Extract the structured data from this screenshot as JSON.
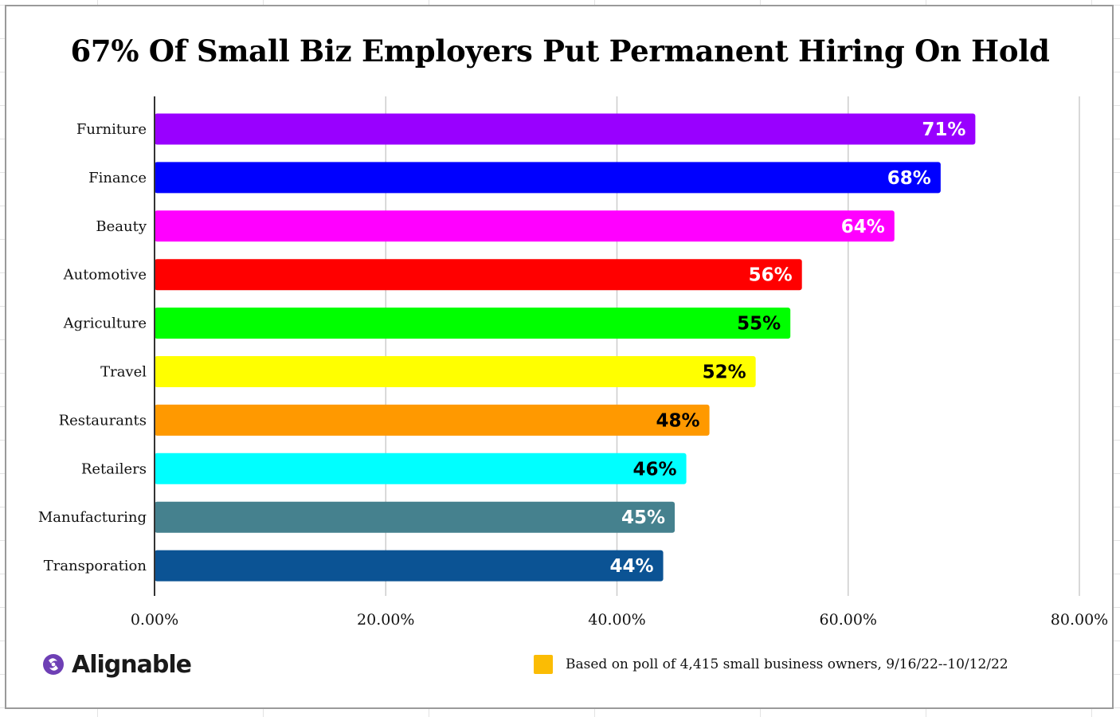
{
  "chart_data": {
    "type": "bar",
    "orientation": "horizontal",
    "title": "67% Of Small Biz Employers Put Permanent Hiring On Hold",
    "categories": [
      "Furniture",
      "Finance",
      "Beauty",
      "Automotive",
      "Agriculture",
      "Travel",
      "Restaurants",
      "Retailers",
      "Manufacturing",
      "Transporation"
    ],
    "values": [
      71,
      68,
      64,
      56,
      55,
      52,
      48,
      46,
      45,
      44
    ],
    "data_labels": [
      "71%",
      "68%",
      "64%",
      "56%",
      "55%",
      "52%",
      "48%",
      "46%",
      "45%",
      "44%"
    ],
    "bar_colors": [
      "#9900ff",
      "#0000ff",
      "#ff00ff",
      "#ff0000",
      "#00ff00",
      "#ffff00",
      "#ff9900",
      "#00ffff",
      "#45818e",
      "#0b5394"
    ],
    "label_colors": [
      "#ffffff",
      "#ffffff",
      "#ffffff",
      "#ffffff",
      "#000000",
      "#000000",
      "#000000",
      "#000000",
      "#ffffff",
      "#ffffff"
    ],
    "xlim": [
      0,
      80
    ],
    "x_ticks": [
      0,
      20,
      40,
      60,
      80
    ],
    "x_tick_labels": [
      "0.00%",
      "20.00%",
      "40.00%",
      "60.00%",
      "80.00%"
    ],
    "grid": true,
    "legend_position": "bottom-right",
    "legend": [
      {
        "label": "Based on poll of 4,415 small business owners, 9/16/22--10/12/22",
        "color": "#fbbc04"
      }
    ]
  },
  "brand": {
    "name": "Alignable",
    "icon": "alignable-logo-icon",
    "color": "#6e3fb5"
  }
}
